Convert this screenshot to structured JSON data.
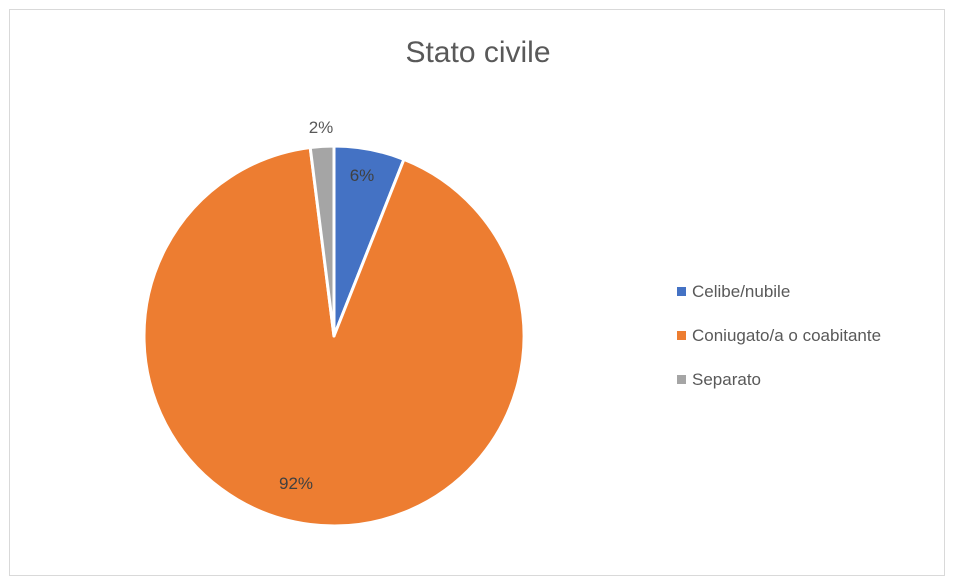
{
  "chart_data": {
    "type": "pie",
    "title": "Stato civile",
    "categories": [
      "Celibe/nubile",
      "Coniugato/a o coabitante",
      "Separato"
    ],
    "values": [
      6,
      92,
      2
    ],
    "data_labels": [
      "6%",
      "92%",
      "2%"
    ],
    "colors": [
      "#4472c4",
      "#ed7d31",
      "#a5a5a5"
    ],
    "legend_position": "right"
  }
}
